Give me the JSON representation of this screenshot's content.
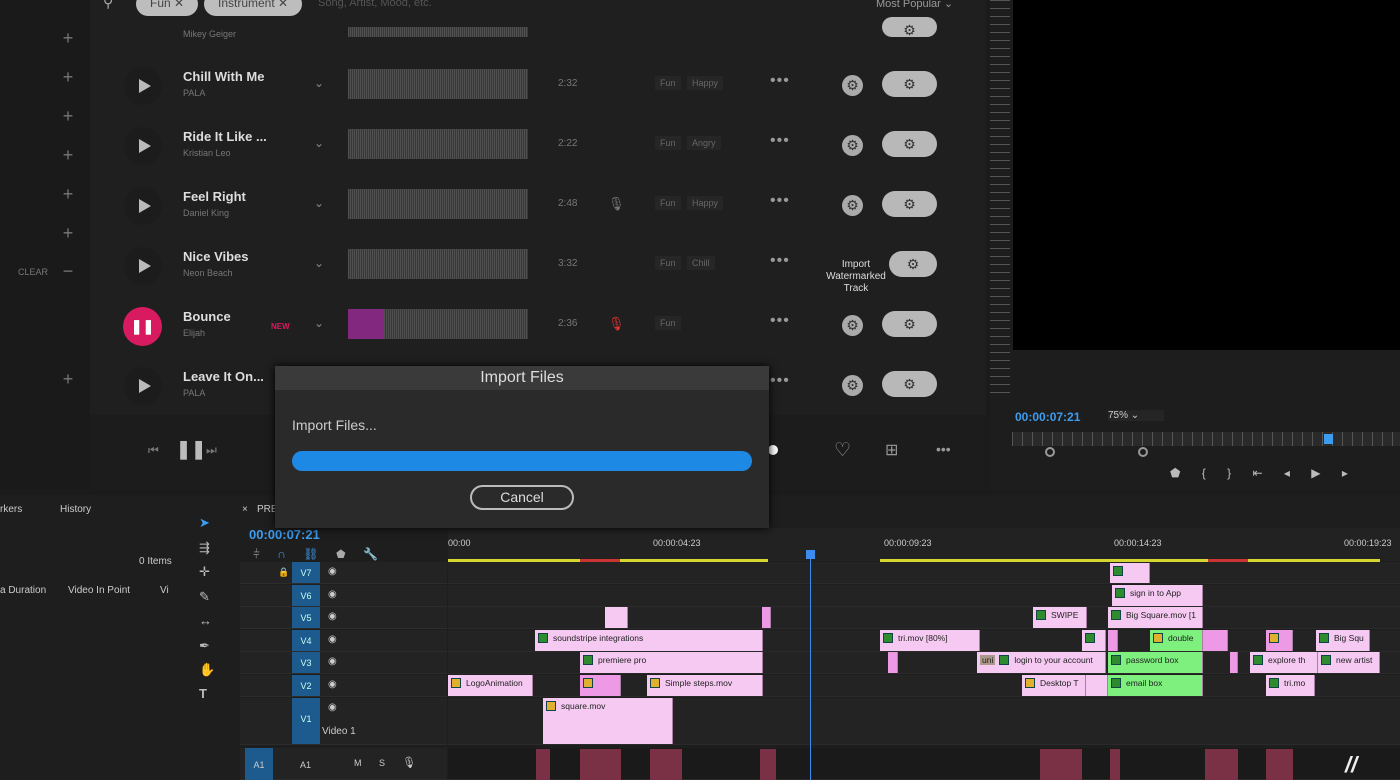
{
  "search": {
    "chips": [
      "Fun",
      "Instrument"
    ],
    "placeholder": "Song, Artist, Mood, etc.",
    "sort": "Most Popular"
  },
  "sidebar": {
    "clear_label": "CLEAR"
  },
  "tracks": [
    {
      "title": "",
      "artist": "Mikey Geiger"
    },
    {
      "title": "Chill With Me",
      "artist": "PALA",
      "duration": "2:32",
      "tags": [
        "Fun",
        "Happy"
      ]
    },
    {
      "title": "Ride It Like ...",
      "artist": "Kristian Leo",
      "duration": "2:22",
      "tags": [
        "Fun",
        "Angry"
      ]
    },
    {
      "title": "Feel Right",
      "artist": "Daniel King",
      "duration": "2:48",
      "tags": [
        "Fun",
        "Happy"
      ],
      "vocal": true
    },
    {
      "title": "Nice Vibes",
      "artist": "Neon Beach",
      "duration": "3:32",
      "tags": [
        "Fun",
        "Chill"
      ],
      "tooltip": "Import Watermarked Track"
    },
    {
      "title": "Bounce",
      "artist": "Elijah",
      "badge": "NEW",
      "duration": "2:36",
      "tags": [
        "Fun"
      ],
      "vocal": true,
      "playing": true,
      "progress": 0.2
    },
    {
      "title": "Leave It On...",
      "artist": "PALA"
    }
  ],
  "dialog": {
    "title": "Import Files",
    "message": "Import Files...",
    "cancel": "Cancel",
    "progress": 1.0
  },
  "preview": {
    "timecode": "00:00:07:21",
    "zoom": "75%"
  },
  "panels": {
    "markers": "rkers",
    "history": "History",
    "items": "0 Items",
    "col1": "a Duration",
    "col2": "Video In Point",
    "col3": "Vi"
  },
  "timeline": {
    "tab": "PRE",
    "timecode": "00:00:07:21",
    "ruler": [
      "00:00",
      "00:00:04:23",
      "00:00:09:23",
      "00:00:14:23",
      "00:00:19:23"
    ],
    "tracks": [
      "V7",
      "V6",
      "V5",
      "V4",
      "V3",
      "V2",
      "V1",
      "A1"
    ],
    "v1_name": "Video 1",
    "audio_labels": [
      "A1",
      "M",
      "S"
    ],
    "clips": [
      "soundstripe integrations",
      "premiere pro",
      "LogoAnimation",
      "Simple steps.mov",
      "square.mov",
      "tri.mov [80%]",
      "SWIPE",
      "sign in to App",
      "Big Square.mov [1",
      "double",
      "login to your account",
      "password box",
      "Desktop T",
      "email box",
      "explore th",
      "new artist",
      "tri.mo",
      "Big Squ",
      "uni"
    ]
  },
  "colors": {
    "accent": "#1e88e5",
    "playing": "#d81b60",
    "clip": "#f6c9f2",
    "clip_green": "#7ef07e"
  }
}
